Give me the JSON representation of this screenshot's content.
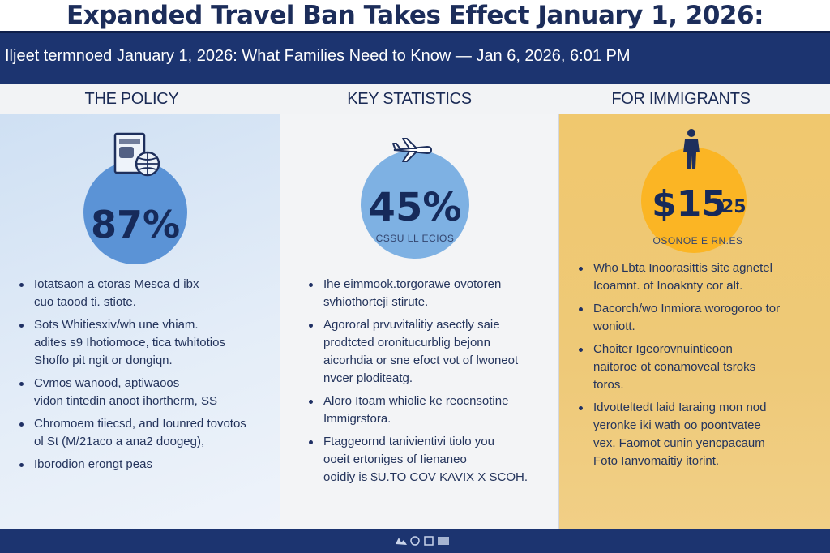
{
  "header": {
    "title": "Expanded Travel Ban Takes Effect January 1, 2026:",
    "subtitle": "Iljeet termnoed January 1, 2026: What Families Need to Know — Jan 6, 2026, 6:01 PM"
  },
  "columns": [
    {
      "heading": "THE POLICY",
      "icon": "passport-icon",
      "stat": "87%",
      "stat_caption": "",
      "bullets": [
        "Iotatsaon a ctoras Mesca d ibx\ncuo taood ti. stiote.",
        "Sots Whitiesxiv/wh une vhiam.\nadites s9 Ihotiomoce, tica twhitotios\nShoffo pit ngit or dongiqn.",
        "Cvmos wanood, aptiwaoos\nvidon tintedin anoot ihortherm, SS",
        "Chromoem tiiecsd, and Iounred tovotos\nol St (M/21aco a ana2 doogeg),",
        "Iborodion erongt peas"
      ]
    },
    {
      "heading": "KEY STATISTICS",
      "icon": "airplane-icon",
      "stat": "45%",
      "stat_caption": "CSSU LL ECIOS",
      "bullets": [
        "Ihe eimmook.torgorawe ovotoren\nsvhiothorteji stirute.",
        "Agororal prvuvitalitiy asectly saie\nprodtcted oronitucurblig bejonn\naicorhdia or sne efoct vot of lwoneot\nnvcer ploditeatg.",
        "Aloro Itoam whiolie ke reocnsotine\nImmigrstora.",
        "Ftaggeornd tanivientivi tiolo you\nooeit ertoniges of Iienaneo\nooidiy is $U.TO COV KAVIX X SCOH."
      ]
    },
    {
      "heading": "FOR IMMIGRANTS",
      "icon": "person-icon",
      "stat": "$15",
      "stat_suffix": "25",
      "stat_caption": "OSONOE E RN.ES",
      "bullets": [
        "Who Lbta Inoorasittis sitc  agnetel\nIcoamnt. of Inoaknty cor alt.",
        "Dacorch/wo Inmiora worogoroo tor\nwoniott.",
        "Choiter Igeorovnuintieoon\nnaitoroe ot conamoveal tsroks\ntoros.",
        "Idvotteltedt laid Iaraing mon nod\nyeronke iki wath oo poontvatee\nvex. Faomot cunin yencpacaum\nFoto Ianvomaitiy itorint."
      ]
    }
  ],
  "colors": {
    "navy": "#1c3470",
    "title_text": "#1c2d5a",
    "policy_circle": "#5b93d6",
    "stats_circle": "#7eb1e3",
    "immigrants_circle": "#fbb524"
  }
}
